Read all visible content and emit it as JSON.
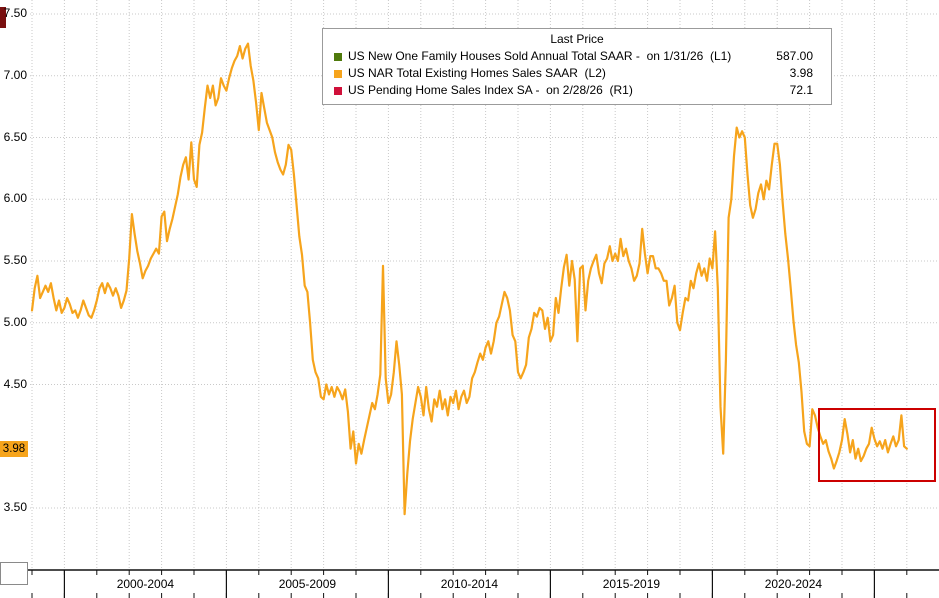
{
  "colors": {
    "series_green": "#4f7a0c",
    "series_orange": "#f6a41c",
    "series_red": "#d0103a",
    "annotation_red": "#cc0000",
    "grid": "#c9c9c9",
    "axis": "#111111"
  },
  "legend": {
    "title": "Last Price",
    "items": [
      {
        "label": "US New One Family Houses Sold Annual Total SAAR -  on 1/31/26  (L1)",
        "value": "587.00",
        "color": "#4f7a0c"
      },
      {
        "label": "US NAR Total Existing Homes Sales SAAR  (L2)",
        "value": "3.98",
        "color": "#f6a41c"
      },
      {
        "label": "US Pending Home Sales Index SA -  on 2/28/26  (R1)",
        "value": "72.1",
        "color": "#d0103a"
      }
    ]
  },
  "badge": {
    "text": "3.98",
    "value": 3.98
  },
  "chart_data": {
    "type": "line",
    "title": "Last Price",
    "y_axis": {
      "tick_labels": [
        "7.50",
        "7.00",
        "6.50",
        "6.00",
        "5.50",
        "5.00",
        "4.50",
        "3.50"
      ],
      "tick_values": [
        7.5,
        7.0,
        6.5,
        6.0,
        5.5,
        5.0,
        4.5,
        3.5
      ],
      "range": [
        3.0,
        7.6
      ],
      "grid": "dotted"
    },
    "x_axis": {
      "labels": [
        "2000-2004",
        "2005-2009",
        "2010-2014",
        "2015-2019",
        "2020-2024"
      ],
      "boundary_years": [
        2000,
        2005,
        2010,
        2015,
        2020,
        2025
      ],
      "range_years": [
        1999.0,
        2026.2
      ],
      "minor_tick_interval_years": 1
    },
    "series": [
      {
        "name": "US NAR Total Existing Homes Sales SAAR (L2)",
        "color": "#f6a41c",
        "unit": "millions SAAR",
        "start_year": 1999,
        "points_per_year": 12,
        "last_value": 3.98,
        "values": [
          5.1,
          5.28,
          5.38,
          5.2,
          5.25,
          5.3,
          5.25,
          5.32,
          5.2,
          5.1,
          5.18,
          5.08,
          5.12,
          5.2,
          5.15,
          5.08,
          5.1,
          5.04,
          5.1,
          5.18,
          5.12,
          5.06,
          5.04,
          5.1,
          5.18,
          5.28,
          5.32,
          5.24,
          5.32,
          5.28,
          5.22,
          5.28,
          5.22,
          5.12,
          5.18,
          5.26,
          5.52,
          5.88,
          5.72,
          5.58,
          5.48,
          5.36,
          5.42,
          5.46,
          5.52,
          5.56,
          5.6,
          5.56,
          5.86,
          5.9,
          5.66,
          5.76,
          5.84,
          5.94,
          6.04,
          6.18,
          6.28,
          6.34,
          6.16,
          6.46,
          6.16,
          6.1,
          6.44,
          6.54,
          6.74,
          6.92,
          6.82,
          6.92,
          6.76,
          6.82,
          6.98,
          6.92,
          6.88,
          6.98,
          7.06,
          7.12,
          7.16,
          7.24,
          7.14,
          7.22,
          7.26,
          7.08,
          6.96,
          6.78,
          6.56,
          6.86,
          6.74,
          6.62,
          6.56,
          6.5,
          6.38,
          6.3,
          6.24,
          6.2,
          6.28,
          6.44,
          6.4,
          6.2,
          5.95,
          5.7,
          5.55,
          5.3,
          5.25,
          5.0,
          4.7,
          4.6,
          4.55,
          4.4,
          4.38,
          4.5,
          4.42,
          4.48,
          4.4,
          4.48,
          4.44,
          4.38,
          4.46,
          4.28,
          3.98,
          4.12,
          3.86,
          4.02,
          3.94,
          4.05,
          4.15,
          4.25,
          4.35,
          4.3,
          4.42,
          4.58,
          5.46,
          4.55,
          4.35,
          4.42,
          4.6,
          4.85,
          4.66,
          4.42,
          3.45,
          3.78,
          4.04,
          4.22,
          4.35,
          4.48,
          4.4,
          4.25,
          4.48,
          4.3,
          4.2,
          4.38,
          4.32,
          4.45,
          4.3,
          4.38,
          4.25,
          4.4,
          4.35,
          4.45,
          4.3,
          4.4,
          4.45,
          4.35,
          4.4,
          4.55,
          4.6,
          4.68,
          4.75,
          4.7,
          4.8,
          4.85,
          4.75,
          4.85,
          5.0,
          5.05,
          5.15,
          5.25,
          5.2,
          5.1,
          4.9,
          4.85,
          4.6,
          4.55,
          4.6,
          4.66,
          4.88,
          4.95,
          5.08,
          5.05,
          5.12,
          5.1,
          4.95,
          5.04,
          4.85,
          4.9,
          5.2,
          5.08,
          5.28,
          5.45,
          5.55,
          5.3,
          5.5,
          5.35,
          4.85,
          5.44,
          5.46,
          5.1,
          5.34,
          5.44,
          5.5,
          5.55,
          5.4,
          5.32,
          5.48,
          5.52,
          5.62,
          5.5,
          5.56,
          5.5,
          5.68,
          5.54,
          5.6,
          5.5,
          5.44,
          5.34,
          5.38,
          5.48,
          5.76,
          5.56,
          5.4,
          5.54,
          5.54,
          5.44,
          5.44,
          5.4,
          5.34,
          5.34,
          5.14,
          5.2,
          5.3,
          5.0,
          4.94,
          5.08,
          5.2,
          5.18,
          5.34,
          5.28,
          5.4,
          5.48,
          5.38,
          5.44,
          5.34,
          5.52,
          5.44,
          5.74,
          5.28,
          4.32,
          3.94,
          4.7,
          5.85,
          6.0,
          6.35,
          6.58,
          6.5,
          6.55,
          6.5,
          6.2,
          5.95,
          5.85,
          5.92,
          6.05,
          6.12,
          6.0,
          6.15,
          6.08,
          6.28,
          6.45,
          6.45,
          6.28,
          5.98,
          5.72,
          5.52,
          5.28,
          5.02,
          4.82,
          4.68,
          4.44,
          4.12,
          4.02,
          4.0,
          4.3,
          4.25,
          4.15,
          4.08,
          4.02,
          4.05,
          3.96,
          3.9,
          3.82,
          3.88,
          3.95,
          4.05,
          4.22,
          4.1,
          3.95,
          4.05,
          3.9,
          3.98,
          3.88,
          3.92,
          3.98,
          4.02,
          4.15,
          4.06,
          4.0,
          4.04,
          3.98,
          4.05,
          3.95,
          4.02,
          4.08,
          4.0,
          4.05,
          4.25,
          4.0,
          3.98
        ]
      }
    ],
    "annotation": {
      "type": "rect",
      "x_start_year": 2023.27,
      "x_end_year": 2026.77,
      "value_top": 4.31,
      "value_bottom": 3.74,
      "color": "#cc0000"
    }
  }
}
